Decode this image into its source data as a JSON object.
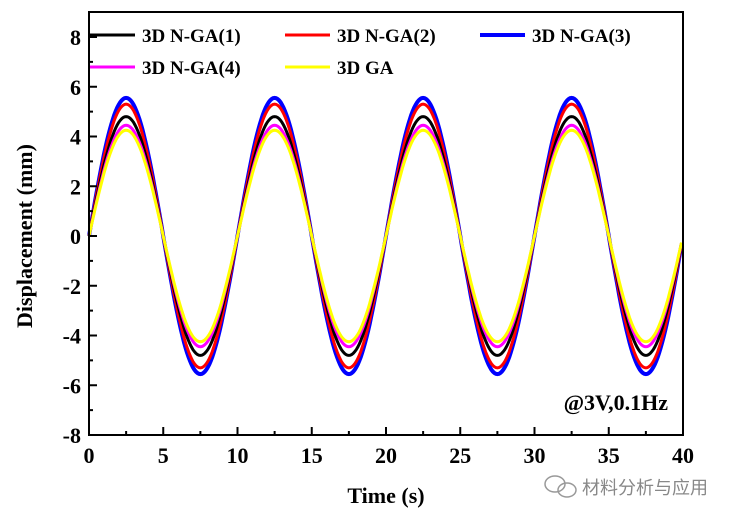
{
  "chart_data": {
    "type": "line",
    "xlabel": "Time (s)",
    "ylabel": "Displacement (mm)",
    "xlim": [
      0,
      40
    ],
    "ylim": [
      -8,
      8
    ],
    "xticks": [
      "0",
      "5",
      "10",
      "15",
      "20",
      "25",
      "30",
      "35",
      "40"
    ],
    "yticks": [
      "-8",
      "-6",
      "-4",
      "-2",
      "0",
      "2",
      "4",
      "6",
      "8"
    ],
    "grid": false,
    "legend_placement": "top",
    "annotation": "@3V,0.1Hz",
    "frequency_hz": 0.1,
    "series": [
      {
        "name": "3D N-GA(1)",
        "color": "#000000",
        "amplitude": 4.8
      },
      {
        "name": "3D N-GA(2)",
        "color": "#ff0000",
        "amplitude": 5.3
      },
      {
        "name": "3D N-GA(3)",
        "color": "#0000ff",
        "amplitude": 5.55
      },
      {
        "name": "3D N-GA(4)",
        "color": "#ff00ff",
        "amplitude": 4.45
      },
      {
        "name": "3D GA",
        "color": "#ffff00",
        "amplitude": 4.25
      }
    ]
  },
  "watermark": "材料分析与应用"
}
